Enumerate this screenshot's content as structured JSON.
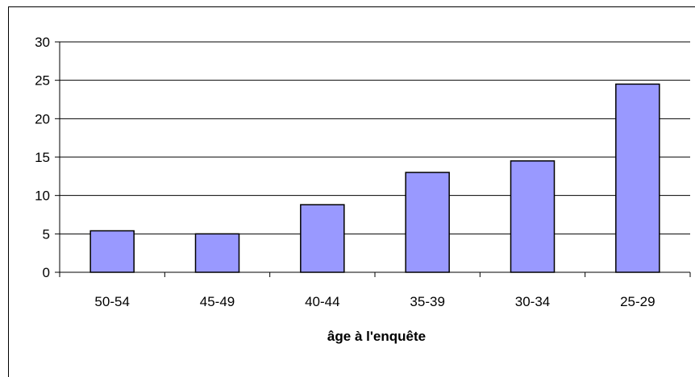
{
  "chart_data": {
    "type": "bar",
    "title": "",
    "xlabel": "âge à l'enquête",
    "ylabel": "",
    "categories": [
      "50-54",
      "45-49",
      "40-44",
      "35-39",
      "30-34",
      "25-29"
    ],
    "values": [
      5.4,
      5.0,
      8.8,
      13.0,
      14.5,
      24.5
    ],
    "ylim": [
      0,
      30
    ],
    "yticks": [
      "0",
      "5",
      "10",
      "15",
      "20",
      "25",
      "30"
    ],
    "grid": true,
    "legend": "none",
    "colors": {
      "bar_fill": "#9999ff",
      "bar_stroke": "#000000",
      "grid": "#000000"
    }
  }
}
